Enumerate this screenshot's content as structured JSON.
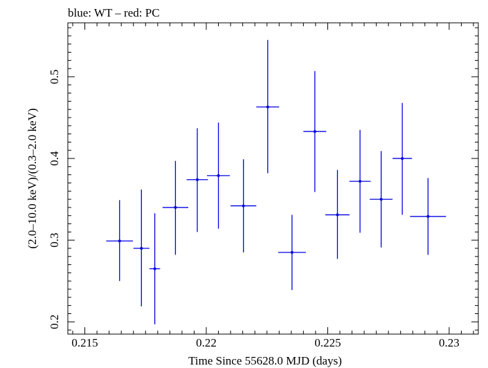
{
  "chart_data": {
    "type": "scatter",
    "title": "blue: WT – red: PC",
    "xlabel": "Time Since 55628.0 MJD (days)",
    "ylabel": "(2.0–10.0 keV)/(0.3–2.0 keV)",
    "xlim": [
      0.2143,
      0.2312
    ],
    "ylim": [
      0.185,
      0.566
    ],
    "x_ticks": [
      {
        "value": 0.215,
        "label": "0.215"
      },
      {
        "value": 0.22,
        "label": "0.22"
      },
      {
        "value": 0.225,
        "label": "0.225"
      },
      {
        "value": 0.23,
        "label": "0.23"
      }
    ],
    "y_ticks": [
      {
        "value": 0.2,
        "label": "0.2"
      },
      {
        "value": 0.3,
        "label": "0.3"
      },
      {
        "value": 0.4,
        "label": "0.4"
      },
      {
        "value": 0.5,
        "label": "0.5"
      }
    ],
    "grid": false,
    "series": [
      {
        "color": "#0000e0",
        "points": [
          {
            "x": 0.21643,
            "xerr": 0.00055,
            "y": 0.299,
            "ylo": 0.25,
            "yhi": 0.349
          },
          {
            "x": 0.21733,
            "xerr": 0.00033,
            "y": 0.29,
            "ylo": 0.219,
            "yhi": 0.362
          },
          {
            "x": 0.21788,
            "xerr": 0.00022,
            "y": 0.265,
            "ylo": 0.197,
            "yhi": 0.333
          },
          {
            "x": 0.21873,
            "xerr": 0.00053,
            "y": 0.34,
            "ylo": 0.282,
            "yhi": 0.397
          },
          {
            "x": 0.21963,
            "xerr": 0.00044,
            "y": 0.374,
            "ylo": 0.31,
            "yhi": 0.437
          },
          {
            "x": 0.2205,
            "xerr": 0.00047,
            "y": 0.379,
            "ylo": 0.314,
            "yhi": 0.444
          },
          {
            "x": 0.22153,
            "xerr": 0.00053,
            "y": 0.342,
            "ylo": 0.285,
            "yhi": 0.399
          },
          {
            "x": 0.22253,
            "xerr": 0.00047,
            "y": 0.463,
            "ylo": 0.382,
            "yhi": 0.545
          },
          {
            "x": 0.22353,
            "xerr": 0.00057,
            "y": 0.285,
            "ylo": 0.239,
            "yhi": 0.331
          },
          {
            "x": 0.22447,
            "xerr": 0.00047,
            "y": 0.433,
            "ylo": 0.359,
            "yhi": 0.507
          },
          {
            "x": 0.2254,
            "xerr": 0.0005,
            "y": 0.331,
            "ylo": 0.277,
            "yhi": 0.386
          },
          {
            "x": 0.22633,
            "xerr": 0.00044,
            "y": 0.372,
            "ylo": 0.309,
            "yhi": 0.435
          },
          {
            "x": 0.2272,
            "xerr": 0.00047,
            "y": 0.35,
            "ylo": 0.291,
            "yhi": 0.409
          },
          {
            "x": 0.22807,
            "xerr": 0.0004,
            "y": 0.4,
            "ylo": 0.331,
            "yhi": 0.468
          },
          {
            "x": 0.22913,
            "xerr": 0.00074,
            "y": 0.329,
            "ylo": 0.282,
            "yhi": 0.376
          }
        ]
      }
    ]
  }
}
